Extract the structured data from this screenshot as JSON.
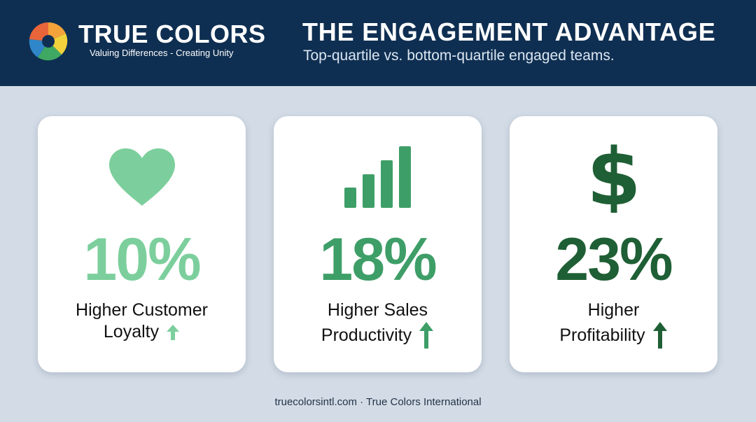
{
  "brand": {
    "title": "TRUE COLORS",
    "tagline": "Valuing Differences - Creating Unity"
  },
  "header": {
    "title": "THE ENGAGEMENT ADVANTAGE",
    "subtitle": "Top-quartile vs. bottom-quartile engaged teams."
  },
  "cards": [
    {
      "value": "10%",
      "line1": "Higher Customer",
      "line2": "Loyalty",
      "icon": "heart-icon",
      "color": "#7ccf9c"
    },
    {
      "value": "18%",
      "line1": "Higher Sales",
      "line2": "Productivity",
      "icon": "bar-chart-icon",
      "color": "#3e9e67"
    },
    {
      "value": "23%",
      "line1": "Higher",
      "line2": "Profitability",
      "icon": "dollar-icon",
      "color": "#1f5f35"
    }
  ],
  "footer": "truecolorsintl.com · True Colors International",
  "colors": {
    "header_bg": "#0f2f52",
    "page_bg": "#d3dce6",
    "card_bg": "#ffffff"
  }
}
